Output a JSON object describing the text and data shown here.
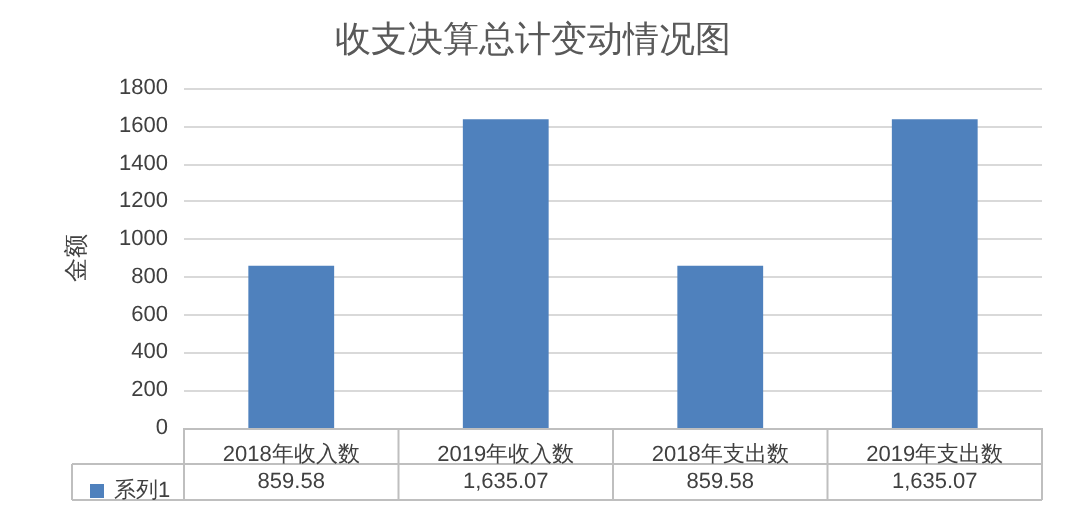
{
  "chart_data": {
    "type": "bar",
    "title": "收支决算总计变动情况图",
    "ylabel": "金额",
    "categories": [
      "2018年收入数",
      "2019年收入数",
      "2018年支出数",
      "2019年支出数"
    ],
    "series": [
      {
        "name": "系列1",
        "color": "#4f81bd",
        "values": [
          859.58,
          1635.07,
          859.58,
          1635.07
        ],
        "value_labels": [
          "859.58",
          "1,635.07",
          "859.58",
          "1,635.07"
        ]
      }
    ],
    "ylim": [
      0,
      1800
    ],
    "yticks": [
      0,
      200,
      400,
      600,
      800,
      1000,
      1200,
      1400,
      1600,
      1800
    ],
    "grid": "y",
    "legend": "bottom left"
  }
}
